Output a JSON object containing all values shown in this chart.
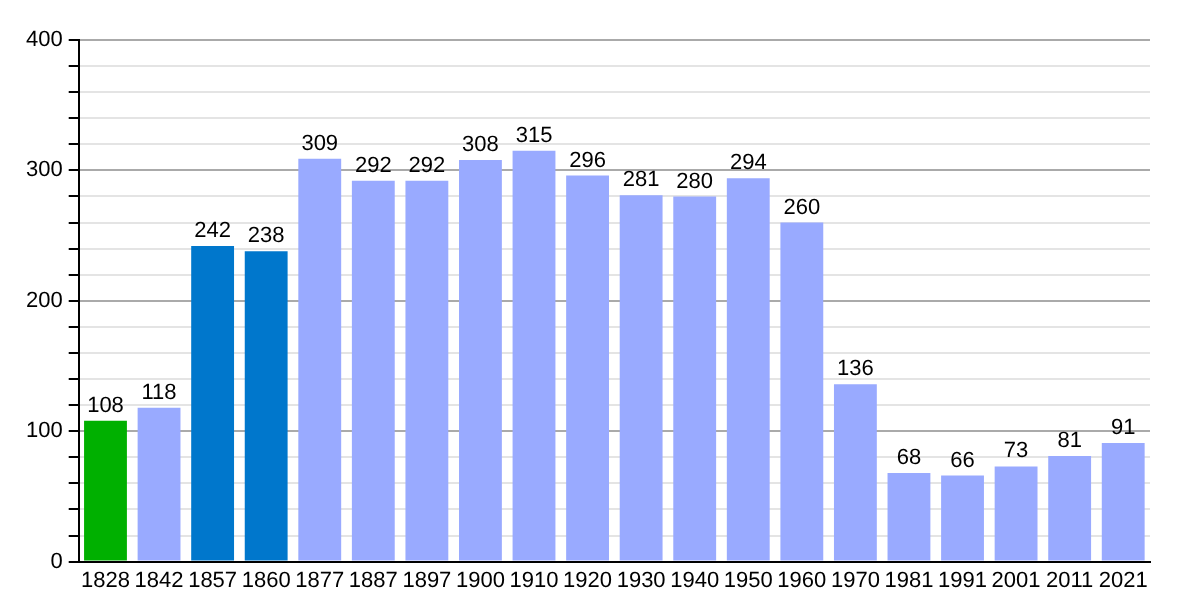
{
  "chart_data": {
    "type": "bar",
    "categories": [
      "1828",
      "1842",
      "1857",
      "1860",
      "1877",
      "1887",
      "1897",
      "1900",
      "1910",
      "1920",
      "1930",
      "1940",
      "1950",
      "1960",
      "1970",
      "1981",
      "1991",
      "2001",
      "2011",
      "2021"
    ],
    "values": [
      108,
      118,
      242,
      238,
      309,
      292,
      292,
      308,
      315,
      296,
      281,
      280,
      294,
      260,
      136,
      68,
      66,
      73,
      81,
      91
    ],
    "colors": [
      "#00b000",
      "#99aaff",
      "#0077cc",
      "#0077cc",
      "#99aaff",
      "#99aaff",
      "#99aaff",
      "#99aaff",
      "#99aaff",
      "#99aaff",
      "#99aaff",
      "#99aaff",
      "#99aaff",
      "#99aaff",
      "#99aaff",
      "#99aaff",
      "#99aaff",
      "#99aaff",
      "#99aaff",
      "#99aaff"
    ],
    "ylim": [
      0,
      400
    ],
    "yticks": [
      0,
      {
        "value": 20,
        "label": null
      },
      {
        "value": 40,
        "label": null
      },
      {
        "value": 60,
        "label": null
      },
      {
        "value": 80,
        "label": null
      },
      100,
      {
        "value": 120,
        "label": null
      },
      {
        "value": 140,
        "label": null
      },
      {
        "value": 160,
        "label": null
      },
      {
        "value": 180,
        "label": null
      },
      200,
      {
        "value": 220,
        "label": null
      },
      {
        "value": 240,
        "label": null
      },
      {
        "value": 260,
        "label": null
      },
      {
        "value": 280,
        "label": null
      },
      300,
      {
        "value": 320,
        "label": null
      },
      {
        "value": 340,
        "label": null
      },
      {
        "value": 360,
        "label": null
      },
      {
        "value": 380,
        "label": null
      },
      400
    ],
    "grid": "y",
    "data_labels": true,
    "legend": false
  }
}
